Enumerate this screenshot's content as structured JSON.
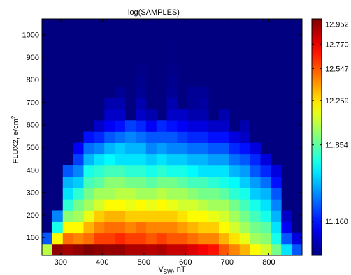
{
  "chart_data": {
    "type": "heatmap",
    "title": "log(SAMPLES)",
    "xlabel": {
      "main": "V",
      "sub": "SW",
      "unit": ", nT"
    },
    "ylabel": {
      "main": "FLUX2, e/cm",
      "sup": "2"
    },
    "xlim": [
      255,
      880
    ],
    "ylim": [
      20,
      1070
    ],
    "x_bin_width": 25,
    "x_bin_start": 255,
    "y_bin_height": 50,
    "y_bin_start": 20,
    "xticks": [
      300,
      400,
      500,
      600,
      700,
      800
    ],
    "yticks": [
      100,
      200,
      300,
      400,
      500,
      600,
      700,
      800,
      900,
      1000
    ],
    "colorbar": {
      "min": 10.85,
      "max": 13.0,
      "tick_values": [
        11.16,
        11.854,
        12.259,
        12.547,
        12.77,
        12.952
      ],
      "tick_labels": [
        "11.160",
        "11.854",
        "12.259",
        "12.547",
        "12.770",
        "12.952"
      ]
    },
    "background_value": 10.85,
    "columns": [
      [
        12.05,
        11.3
      ],
      [
        12.97,
        12.2,
        11.7,
        11.4
      ],
      [
        12.92,
        12.5,
        12.2,
        11.95,
        11.75,
        11.6,
        11.5,
        11.3
      ],
      [
        12.96,
        12.45,
        12.2,
        12.0,
        11.9,
        11.75,
        11.55,
        11.4,
        11.25,
        11.1
      ],
      [
        13.0,
        12.5,
        12.35,
        12.15,
        12.0,
        11.9,
        11.8,
        11.7,
        11.5,
        11.35,
        11.15
      ],
      [
        12.97,
        12.6,
        12.45,
        12.3,
        12.1,
        12.0,
        11.85,
        11.75,
        11.6,
        11.4,
        11.2,
        11.0
      ],
      [
        12.95,
        12.6,
        12.5,
        12.35,
        12.2,
        12.0,
        11.95,
        11.8,
        11.65,
        11.5,
        11.3,
        11.1,
        11.0,
        10.95
      ],
      [
        12.95,
        12.65,
        12.5,
        12.35,
        12.2,
        12.05,
        11.95,
        11.8,
        11.6,
        11.55,
        11.35,
        11.15,
        11.0,
        10.95,
        10.9
      ],
      [
        12.9,
        12.6,
        12.45,
        12.3,
        12.15,
        12.05,
        11.9,
        11.75,
        11.6,
        11.5,
        11.4,
        11.25
      ],
      [
        12.9,
        12.6,
        12.5,
        12.3,
        12.2,
        12.0,
        11.9,
        11.75,
        11.6,
        11.5,
        11.35,
        11.2,
        11.0,
        10.95,
        10.9,
        10.88,
        10.87
      ],
      [
        12.88,
        12.55,
        12.45,
        12.3,
        12.15,
        12.0,
        11.85,
        11.7,
        11.55,
        11.4,
        11.3,
        11.1,
        10.95
      ],
      [
        12.9,
        12.6,
        12.45,
        12.3,
        12.2,
        12.05,
        11.9,
        11.75,
        11.6,
        11.45,
        11.3,
        11.2
      ],
      [
        12.85,
        12.55,
        12.45,
        12.3,
        12.15,
        12.0,
        11.9,
        11.7,
        11.55,
        11.4,
        11.3,
        11.15,
        11.0,
        10.95,
        10.9,
        10.88,
        10.87,
        10.86,
        10.86
      ],
      [
        12.85,
        12.55,
        12.4,
        12.25,
        12.1,
        12.0,
        11.85,
        11.7,
        11.55,
        11.4,
        11.25,
        11.1,
        11.0
      ],
      [
        12.8,
        12.5,
        12.35,
        12.2,
        12.1,
        11.95,
        11.8,
        11.65,
        11.5,
        11.35,
        11.2,
        11.05,
        10.95,
        10.9,
        10.9
      ],
      [
        12.75,
        12.45,
        12.3,
        12.2,
        12.05,
        11.9,
        11.8,
        11.6,
        11.5,
        11.35,
        11.2,
        11.05,
        10.95,
        10.92,
        10.9
      ],
      [
        12.7,
        12.45,
        12.3,
        12.15,
        12.0,
        11.9,
        11.75,
        11.6,
        11.45,
        11.3,
        11.15,
        11.0
      ],
      [
        12.55,
        12.35,
        12.2,
        12.1,
        12.0,
        11.85,
        11.7,
        11.6,
        11.45,
        11.3,
        11.15,
        11.0,
        10.95
      ],
      [
        12.45,
        12.25,
        12.1,
        12.0,
        11.9,
        11.75,
        11.65,
        11.5,
        11.35,
        11.2,
        11.05
      ],
      [
        12.35,
        12.15,
        12.0,
        11.9,
        11.8,
        11.7,
        11.55,
        11.45,
        11.3,
        11.15,
        11.0,
        10.95
      ],
      [
        12.2,
        12.0,
        11.9,
        11.8,
        11.7,
        11.55,
        11.45,
        11.3,
        11.2,
        11.05
      ],
      [
        12.1,
        11.95,
        11.85,
        11.7,
        11.6,
        11.5,
        11.35,
        11.2,
        11.05
      ],
      [
        11.9,
        11.7,
        11.6,
        11.5,
        11.4,
        11.3,
        11.15,
        11.05
      ],
      [
        11.6,
        11.3,
        11.1,
        11.0
      ],
      [
        11.3,
        11.05
      ]
    ]
  }
}
